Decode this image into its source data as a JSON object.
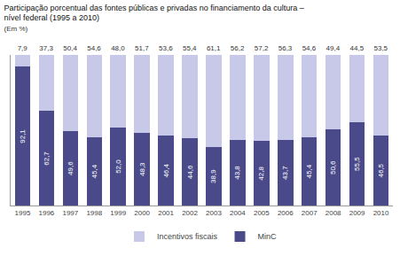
{
  "chart_data": {
    "type": "bar",
    "title": "Participação porcentual das fontes públicas e privadas no financiamento da cultura –\nnível federal (1995 a 2010)",
    "subtitle": "(Em %)",
    "categories": [
      "1995",
      "1996",
      "1997",
      "1998",
      "1999",
      "2000",
      "2001",
      "2002",
      "2003",
      "2004",
      "2005",
      "2006",
      "2007",
      "2008",
      "2009",
      "2010"
    ],
    "series": [
      {
        "name": "MinC",
        "color": "#4a4a8a",
        "values": [
          92.1,
          62.7,
          49.6,
          45.4,
          52.0,
          48.3,
          46.4,
          44.6,
          38.9,
          43.8,
          42.8,
          43.7,
          45.4,
          50.6,
          55.5,
          46.5
        ],
        "value_labels": [
          "92,1",
          "62,7",
          "49,6",
          "45,4",
          "52,0",
          "48,3",
          "46,4",
          "44,6",
          "38,9",
          "43,8",
          "42,8",
          "43,7",
          "45,4",
          "50,6",
          "55,5",
          "46,5"
        ]
      },
      {
        "name": "Incentivos fiscais",
        "color": "#c8c8e8",
        "values": [
          7.9,
          37.3,
          50.4,
          54.6,
          48.0,
          51.7,
          53.6,
          55.4,
          61.1,
          56.2,
          57.2,
          56.3,
          54.6,
          49.4,
          44.5,
          53.5
        ],
        "value_labels": [
          "7,9",
          "37,3",
          "50,4",
          "54,6",
          "48,0",
          "51,7",
          "53,6",
          "55,4",
          "61,1",
          "56,2",
          "57,2",
          "56,3",
          "54,6",
          "49,4",
          "44,5",
          "53,5"
        ]
      }
    ],
    "stacked": true,
    "data_labels": true,
    "tick_labels": "x",
    "ylim": [
      0,
      100
    ],
    "yticks": [],
    "grid": false,
    "legend": "bottom"
  }
}
